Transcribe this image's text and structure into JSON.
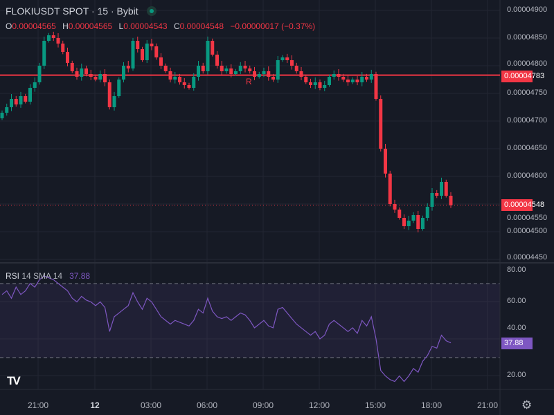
{
  "header": {
    "title": "FLOKIUSDT SPOT · 15 · Bybit",
    "status": "market-open",
    "o_label": "O",
    "o": "0.00004565",
    "h_label": "H",
    "h": "0.00004565",
    "l_label": "L",
    "l": "0.00004543",
    "c_label": "C",
    "c": "0.00004548",
    "change": "−0.00000017 (−0.37%)"
  },
  "rsi": {
    "name": "RSI",
    "params": "14 SMA 14",
    "value": "37.88",
    "color": "#7e57c2",
    "upper_band": 70,
    "lower_band": 30,
    "ticks": [
      "80.00",
      "60.00",
      "40.00",
      "20.00"
    ],
    "values": [
      64,
      66,
      62,
      68,
      64,
      66,
      70,
      68,
      72,
      74,
      73,
      72,
      70,
      68,
      66,
      62,
      60,
      63,
      61,
      60,
      58,
      60,
      57,
      44,
      52,
      54,
      56,
      58,
      65,
      60,
      56,
      62,
      60,
      56,
      52,
      50,
      48,
      50,
      49,
      48,
      47,
      50,
      56,
      54,
      62,
      55,
      52,
      51,
      52,
      50,
      52,
      54,
      53,
      50,
      46,
      48,
      50,
      47,
      46,
      56,
      57,
      54,
      51,
      48,
      46,
      44,
      42,
      44,
      40,
      42,
      48,
      50,
      48,
      46,
      44,
      46,
      43,
      50,
      47,
      52,
      40,
      23,
      20,
      18,
      17,
      20,
      17,
      20,
      24,
      22,
      28,
      31,
      36,
      35,
      42,
      39,
      37.88
    ]
  },
  "price_axis": {
    "ticks": [
      "0.00004900",
      "0.00004850",
      "0.00004800",
      "0.00004750",
      "0.00004700",
      "0.00004650",
      "0.00004600",
      "0.00004550",
      "0.00004500",
      "0.00004450"
    ],
    "alert_line": "0.00004783",
    "last_price": "0.00004548"
  },
  "time_axis": {
    "labels": [
      "21:00",
      "12",
      "03:00",
      "06:00",
      "09:00",
      "12:00",
      "15:00",
      "18:00",
      "21:00"
    ]
  },
  "marker": "R",
  "colors": {
    "up": "#089981",
    "down": "#f23645",
    "background": "#161a25"
  },
  "chart_data": {
    "type": "candlestick",
    "symbol": "FLOKIUSDT",
    "interval": "15",
    "closes": [
      4.715e-05,
      4.725e-05,
      4.74e-05,
      4.73e-05,
      4.745e-05,
      4.735e-05,
      4.76e-05,
      4.77e-05,
      4.8e-05,
      4.845e-05,
      4.855e-05,
      4.85e-05,
      4.84e-05,
      4.825e-05,
      4.805e-05,
      4.79e-05,
      4.78e-05,
      4.795e-05,
      4.785e-05,
      4.78e-05,
      4.775e-05,
      4.785e-05,
      4.77e-05,
      4.725e-05,
      4.745e-05,
      4.775e-05,
      4.8e-05,
      4.795e-05,
      4.845e-05,
      4.83e-05,
      4.81e-05,
      4.84e-05,
      4.835e-05,
      4.815e-05,
      4.8e-05,
      4.79e-05,
      4.775e-05,
      4.78e-05,
      4.77e-05,
      4.765e-05,
      4.76e-05,
      4.78e-05,
      4.8e-05,
      4.79e-05,
      4.845e-05,
      4.82e-05,
      4.8e-05,
      4.79e-05,
      4.795e-05,
      4.785e-05,
      4.79e-05,
      4.8e-05,
      4.795e-05,
      4.79e-05,
      4.78e-05,
      4.785e-05,
      4.79e-05,
      4.78e-05,
      4.775e-05,
      4.81e-05,
      4.815e-05,
      4.81e-05,
      4.8e-05,
      4.79e-05,
      4.78e-05,
      4.77e-05,
      4.765e-05,
      4.77e-05,
      4.76e-05,
      4.765e-05,
      4.78e-05,
      4.785e-05,
      4.78e-05,
      4.775e-05,
      4.77e-05,
      4.775e-05,
      4.77e-05,
      4.78e-05,
      4.775e-05,
      4.785e-05,
      4.74e-05,
      4.65e-05,
      4.605e-05,
      4.55e-05,
      4.54e-05,
      4.525e-05,
      4.51e-05,
      4.52e-05,
      4.53e-05,
      4.505e-05,
      4.525e-05,
      4.545e-05,
      4.57e-05,
      4.565e-05,
      4.59e-05,
      4.565e-05,
      4.548e-05
    ],
    "ylim": [
      4.44e-05,
      4.91e-05
    ]
  }
}
